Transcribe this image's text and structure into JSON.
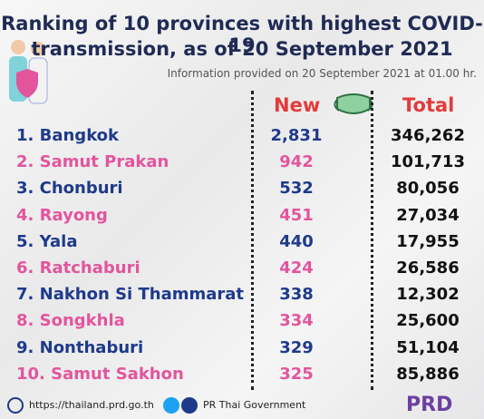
{
  "header": {
    "title_line1": "Ranking of 10 provinces with highest COVID-19",
    "title_line2": "transmission, as of 20 September 2021",
    "subtitle": "Information provided on 20 September 2021 at 01.00 hr."
  },
  "table": {
    "headers": [
      "New",
      "Total"
    ],
    "rows": [
      [
        "1. Bangkok",
        "2,831",
        "346,262"
      ],
      [
        "2. Samut Prakan",
        "942",
        "101,713"
      ],
      [
        "3. Chonburi",
        "532",
        "80,056"
      ],
      [
        "4. Rayong",
        "451",
        "27,034"
      ],
      [
        "5. Yala",
        "440",
        "17,955"
      ],
      [
        "6. Ratchaburi",
        "424",
        "26,586"
      ],
      [
        "7. Nakhon Si Thammarat",
        "338",
        "12,302"
      ],
      [
        "8. Songkhla",
        "334",
        "25,600"
      ],
      [
        "9. Nonthaburi",
        "329",
        "51,104"
      ],
      [
        "10. Samut Sakhon",
        "325",
        "85,886"
      ]
    ]
  },
  "footer": {
    "website": "https://thailand.prd.go.th",
    "social": "PR Thai Government",
    "logo": "PRD"
  }
}
